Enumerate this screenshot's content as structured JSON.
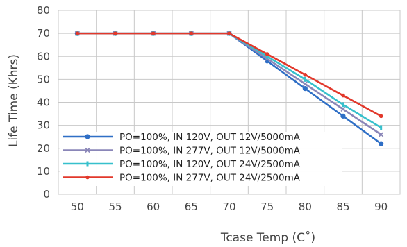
{
  "chart_data": {
    "type": "line",
    "xlabel": "Tcase Temp (C˚)",
    "ylabel": "Life Time (Khrs)",
    "x": [
      50,
      55,
      60,
      65,
      70,
      75,
      80,
      85,
      90
    ],
    "xlim": [
      47.5,
      92.5
    ],
    "ylim": [
      0,
      80
    ],
    "x_ticks": [
      "50",
      "55",
      "60",
      "65",
      "70",
      "75",
      "80",
      "85",
      "90"
    ],
    "y_ticks": [
      "0",
      "10",
      "20",
      "30",
      "40",
      "50",
      "60",
      "70",
      "80"
    ],
    "grid": true,
    "legend_position": "lower-left",
    "series": [
      {
        "name": "PO=100%, IN 120V, OUT 12V/5000mA",
        "color": "#2f6fc6",
        "marker": "circle",
        "x": [
          50,
          55,
          60,
          65,
          70,
          75,
          80,
          85,
          90
        ],
        "values": [
          70,
          70,
          70,
          70,
          70,
          58,
          46,
          34,
          22
        ]
      },
      {
        "name": "PO=100%, IN 277V, OUT 12V/5000mA",
        "color": "#8a86b8",
        "marker": "x",
        "x": [
          50,
          55,
          60,
          65,
          70,
          75,
          80,
          85,
          90
        ],
        "values": [
          70,
          70,
          70,
          70,
          70,
          59,
          48,
          37,
          26
        ]
      },
      {
        "name": "PO=100%, IN 120V, OUT 24V/2500mA",
        "color": "#36c0cc",
        "marker": "bar",
        "x": [
          50,
          55,
          60,
          65,
          70,
          75,
          80,
          85,
          90
        ],
        "values": [
          70,
          70,
          70,
          70,
          70,
          60,
          50,
          39,
          29
        ]
      },
      {
        "name": "PO=100%, IN 277V, OUT 24V/2500mA",
        "color": "#e2382b",
        "marker": "dot",
        "x": [
          50,
          55,
          60,
          65,
          70,
          75,
          80,
          85,
          90
        ],
        "values": [
          70,
          70,
          70,
          70,
          70,
          61,
          52,
          43,
          34
        ]
      }
    ]
  }
}
